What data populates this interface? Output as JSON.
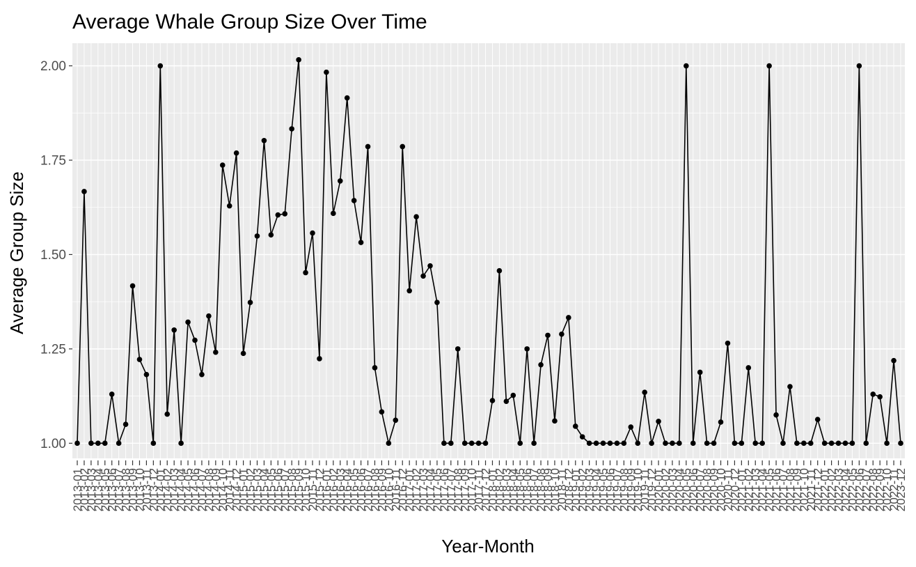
{
  "chart_data": {
    "type": "line",
    "title": "Average Whale Group Size Over Time",
    "xlabel": "Year-Month",
    "ylabel": "Average Group Size",
    "ylim": [
      0.96,
      2.06
    ],
    "yticks": [
      "1.00",
      "1.25",
      "1.50",
      "1.75",
      "2.00"
    ],
    "ytick_values": [
      1.0,
      1.25,
      1.5,
      1.75,
      2.0
    ],
    "grid": true,
    "colors": {
      "panel": "#ebebeb",
      "grid": "#ffffff",
      "line": "#000000",
      "point": "#000000",
      "tick_text": "#4d4d4d"
    },
    "x_first": "2013-01",
    "x_last": "2023-12",
    "series": [
      {
        "values": [
          1.0,
          1.667,
          1.0,
          1.0,
          1.0,
          1.13,
          1.0,
          1.05,
          1.417,
          1.222,
          1.182,
          1.0,
          2.0,
          1.077,
          1.3,
          1.0,
          1.321,
          1.273,
          1.182,
          1.337,
          1.241,
          1.737,
          1.629,
          1.769,
          1.238,
          1.373,
          1.549,
          1.802,
          1.552,
          1.605,
          1.608,
          1.833,
          2.016,
          1.452,
          1.557,
          1.224,
          1.983,
          1.609,
          1.695,
          1.915,
          1.643,
          1.532,
          1.786,
          1.2,
          1.083,
          1.0,
          1.061,
          1.786,
          1.404,
          1.6,
          1.443,
          1.47,
          1.373,
          1.0,
          1.0,
          1.25,
          1.0,
          1.0,
          1.0,
          1.0,
          1.113,
          1.457,
          1.111,
          1.127,
          1.0,
          1.25,
          1.0,
          1.208,
          1.286,
          1.059,
          1.289,
          1.333,
          1.045,
          1.017,
          1.0,
          1.0,
          1.0,
          1.0,
          1.0,
          1.0,
          1.043,
          1.0,
          1.135,
          1.0,
          1.058,
          1.0,
          1.0,
          1.0,
          2.0,
          1.0,
          1.188,
          1.0,
          1.0,
          1.056,
          1.265,
          1.0,
          1.0,
          1.2,
          1.0,
          1.0,
          2.0,
          1.075,
          1.0,
          1.15,
          1.0,
          1.0,
          1.0,
          1.063,
          1.0,
          1.0,
          1.0,
          1.0,
          1.0,
          2.0,
          1.0,
          1.13,
          1.123,
          1.0,
          1.219,
          1.0
        ]
      }
    ],
    "x_tick_labels": [
      "2013-01",
      "2013-02",
      "2013-03",
      "2013-04",
      "2013-05",
      "2013-06",
      "2013-07",
      "2013-08",
      "2013-09",
      "2013-10",
      "2013-11",
      "2013-12",
      "2014-01",
      "2014-02",
      "2014-03",
      "2014-04",
      "2014-05",
      "2014-06",
      "2014-07",
      "2014-08",
      "2014-09",
      "2014-10",
      "2014-11",
      "2014-12",
      "2015-01",
      "2015-02",
      "2015-03",
      "2015-04",
      "2015-05",
      "2015-06",
      "2015-07",
      "2015-08",
      "2015-09",
      "2015-10",
      "2015-11",
      "2015-12",
      "2016-01",
      "2016-02",
      "2016-03",
      "2016-04",
      "2016-05",
      "2016-06",
      "2016-07",
      "2016-08",
      "2016-09",
      "2016-10",
      "2016-11",
      "2016-12",
      "2017-01",
      "2017-02",
      "2017-03",
      "2017-04",
      "2017-05",
      "2017-06",
      "2017-07",
      "2017-08",
      "2017-09",
      "2017-10",
      "2017-11",
      "2017-12",
      "2018-01",
      "2018-02",
      "2018-03",
      "2018-04",
      "2018-05",
      "2018-06",
      "2018-07",
      "2018-08",
      "2018-09",
      "2018-10",
      "2018-11",
      "2018-12",
      "2019-01",
      "2019-02",
      "2019-03",
      "2019-04",
      "2019-05",
      "2019-06",
      "2019-07",
      "2019-08",
      "2019-09",
      "2019-10",
      "2019-11",
      "2019-12",
      "2020-01",
      "2020-02",
      "2020-03",
      "2020-04",
      "2020-05",
      "2020-06",
      "2020-07",
      "2020-08",
      "2020-09",
      "2020-10",
      "2020-11",
      "2020-12",
      "2021-01",
      "2021-02",
      "2021-03",
      "2021-04",
      "2021-05",
      "2021-06",
      "2021-07",
      "2021-08",
      "2021-09",
      "2021-10",
      "2021-11",
      "2021-12",
      "2022-01",
      "2022-02",
      "2022-03",
      "2022-04",
      "2022-05",
      "2022-06",
      "2022-07",
      "2022-08",
      "2022-09",
      "2022-10",
      "2022-11",
      "2023-12"
    ]
  }
}
